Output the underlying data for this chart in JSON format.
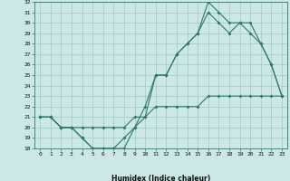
{
  "xlabel": "Humidex (Indice chaleur)",
  "x": [
    0,
    1,
    2,
    3,
    4,
    5,
    6,
    7,
    8,
    9,
    10,
    11,
    12,
    13,
    14,
    15,
    16,
    17,
    18,
    19,
    20,
    21,
    22,
    23
  ],
  "line1": [
    21,
    21,
    20,
    20,
    19,
    18,
    18,
    18,
    18,
    20,
    21,
    25,
    25,
    27,
    28,
    29,
    32,
    31,
    30,
    30,
    30,
    28,
    26,
    23
  ],
  "line2": [
    21,
    21,
    20,
    20,
    19,
    18,
    18,
    18,
    19,
    20,
    22,
    25,
    25,
    27,
    28,
    29,
    31,
    30,
    29,
    30,
    29,
    28,
    26,
    23
  ],
  "line3": [
    21,
    21,
    20,
    20,
    20,
    20,
    20,
    20,
    20,
    21,
    21,
    22,
    22,
    22,
    22,
    22,
    23,
    23,
    23,
    23,
    23,
    23,
    23,
    23
  ],
  "color": "#2a7a6a",
  "bg_color": "#cce8e6",
  "grid_color": "#a0c8c4",
  "ylim": [
    18,
    32
  ],
  "xlim": [
    -0.5,
    23.5
  ],
  "yticks": [
    18,
    19,
    20,
    21,
    22,
    23,
    24,
    25,
    26,
    27,
    28,
    29,
    30,
    31,
    32
  ],
  "xticks": [
    0,
    1,
    2,
    3,
    4,
    5,
    6,
    7,
    8,
    9,
    10,
    11,
    12,
    13,
    14,
    15,
    16,
    17,
    18,
    19,
    20,
    21,
    22,
    23
  ]
}
